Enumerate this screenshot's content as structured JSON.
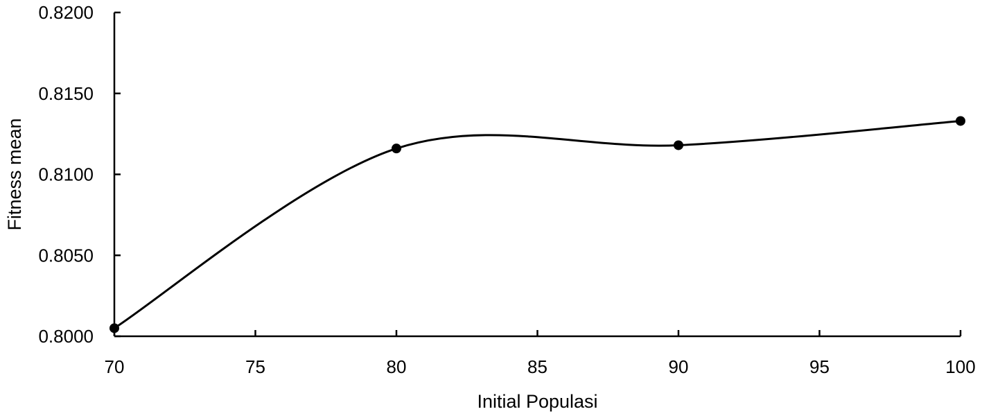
{
  "chart_data": {
    "type": "line",
    "smooth": true,
    "title": "",
    "xlabel": "Initial Populasi",
    "ylabel": "Fitness mean",
    "x": [
      70,
      80,
      90,
      100
    ],
    "series": [
      {
        "values": [
          0.8005,
          0.8116,
          0.8118,
          0.8133
        ]
      }
    ],
    "xlim": [
      70,
      100
    ],
    "ylim": [
      0.8,
      0.82
    ],
    "xticks": [
      70,
      75,
      80,
      85,
      90,
      95,
      100
    ],
    "yticks": [
      "0.8000",
      "0.8050",
      "0.8100",
      "0.8150",
      "0.8200"
    ],
    "grid": false,
    "legend": "none",
    "colors": {
      "line": "#000000",
      "marker": "#000000"
    }
  }
}
